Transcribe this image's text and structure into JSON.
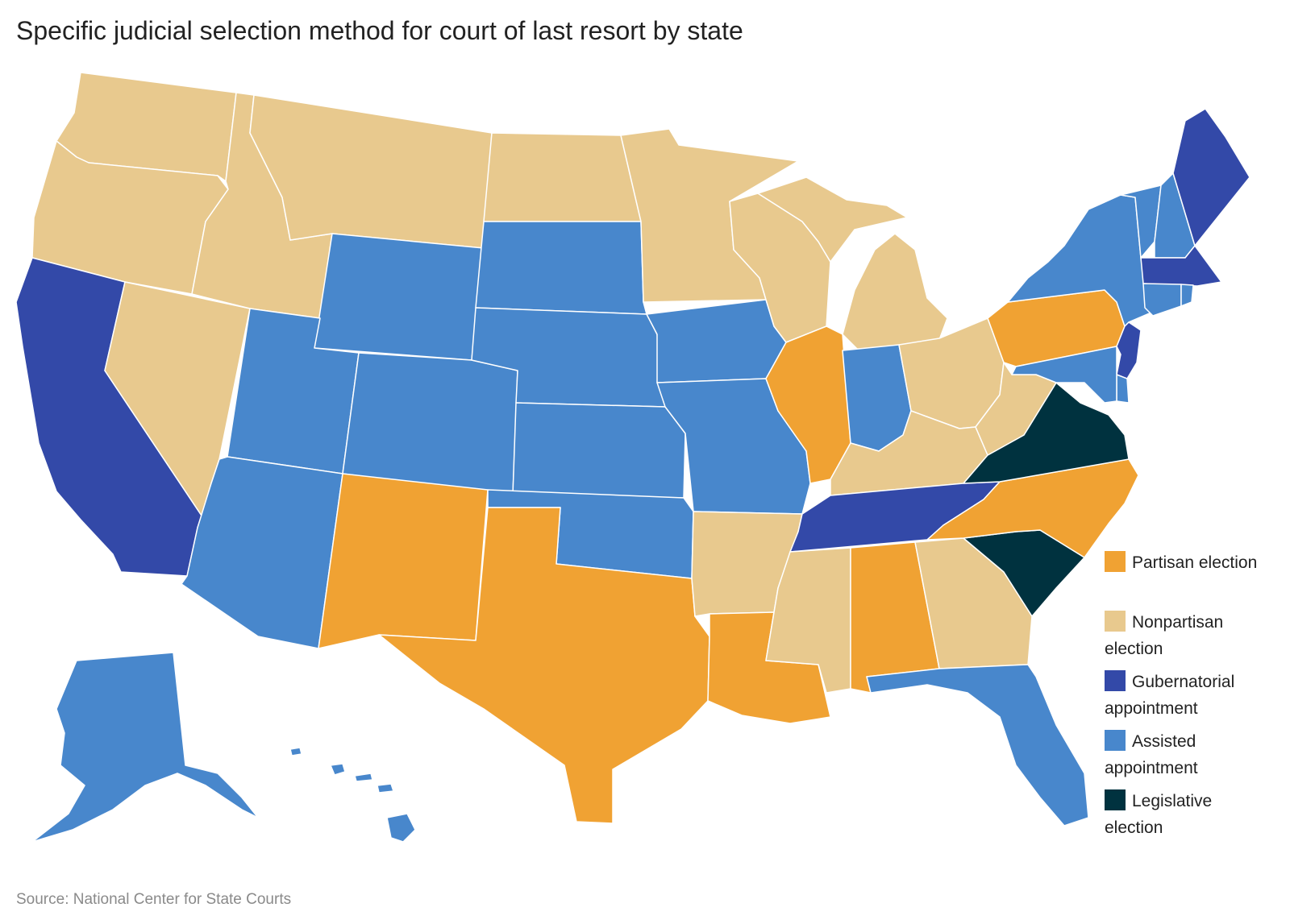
{
  "title": "Specific judicial selection method for court of last resort by state",
  "source": "Source: National Center for State Courts",
  "colors": {
    "partisan": "#f0a233",
    "nonpartisan": "#e8c98e",
    "gubernatorial": "#3349a8",
    "assisted": "#4887cc",
    "legislative": "#00323f",
    "border": "#ffffff"
  },
  "legend": [
    {
      "key": "partisan",
      "label": "Partisan election"
    },
    {
      "key": "nonpartisan",
      "label": "Nonpartisan election"
    },
    {
      "key": "gubernatorial",
      "label": "Gubernatorial appointment"
    },
    {
      "key": "assisted",
      "label": "Assisted appointment"
    },
    {
      "key": "legislative",
      "label": "Legislative election"
    }
  ],
  "states": {
    "WA": "nonpartisan",
    "OR": "nonpartisan",
    "CA": "gubernatorial",
    "NV": "nonpartisan",
    "ID": "nonpartisan",
    "MT": "nonpartisan",
    "WY": "assisted",
    "UT": "assisted",
    "AZ": "assisted",
    "CO": "assisted",
    "NM": "partisan",
    "ND": "nonpartisan",
    "SD": "assisted",
    "NE": "assisted",
    "KS": "assisted",
    "OK": "assisted",
    "TX": "partisan",
    "MN": "nonpartisan",
    "IA": "assisted",
    "MO": "assisted",
    "AR": "nonpartisan",
    "LA": "partisan",
    "WI": "nonpartisan",
    "IL": "partisan",
    "MI": "nonpartisan",
    "IN": "assisted",
    "OH": "nonpartisan",
    "KY": "nonpartisan",
    "TN": "gubernatorial",
    "MS": "nonpartisan",
    "AL": "partisan",
    "GA": "nonpartisan",
    "FL": "assisted",
    "SC": "legislative",
    "NC": "partisan",
    "VA": "legislative",
    "WV": "nonpartisan",
    "PA": "partisan",
    "NY": "assisted",
    "VT": "assisted",
    "NH": "assisted",
    "ME": "gubernatorial",
    "MA": "gubernatorial",
    "RI": "assisted",
    "CT": "assisted",
    "NJ": "gubernatorial",
    "DE": "assisted",
    "MD": "assisted",
    "AK": "assisted",
    "HI": "assisted"
  }
}
